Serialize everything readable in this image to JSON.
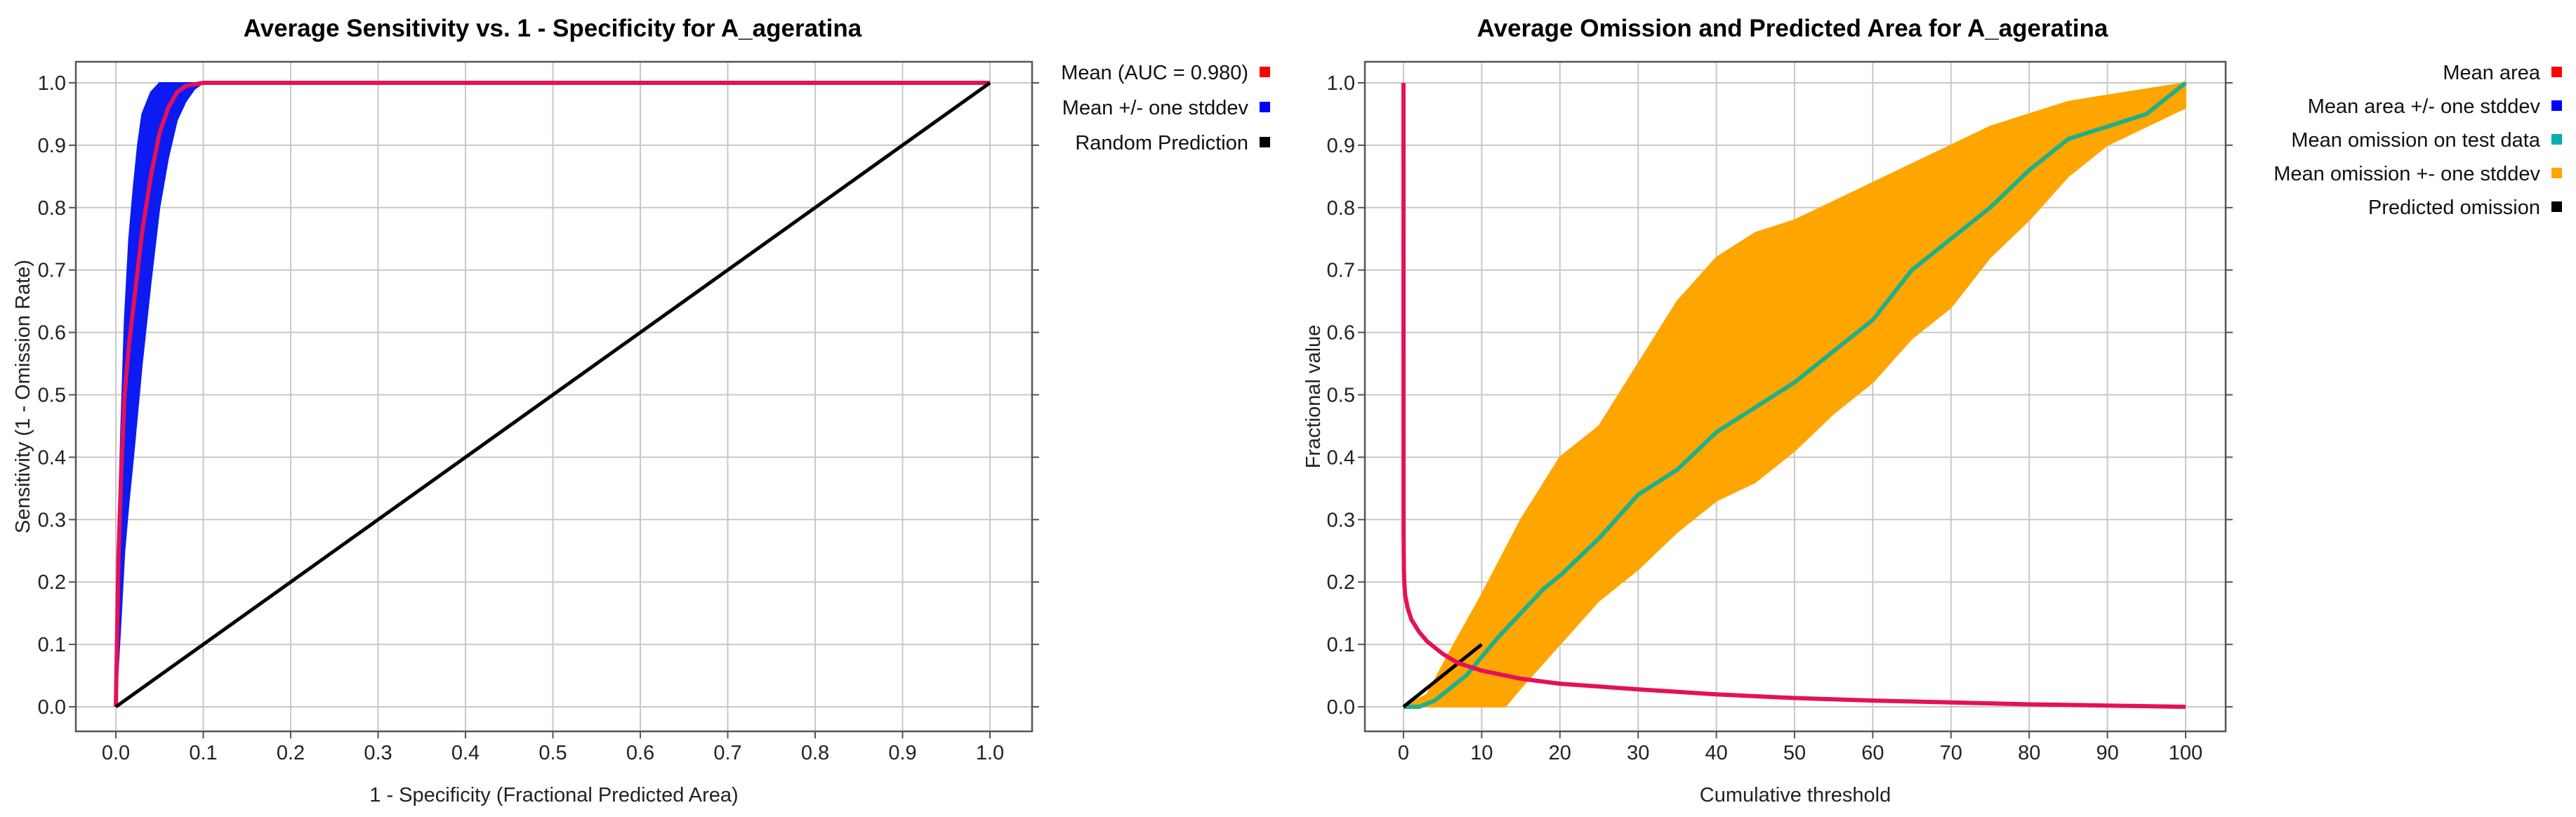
{
  "colors": {
    "mean": "#e4115a",
    "stddev_band": "#0b1bf2",
    "random": "#000000",
    "mean_area": "#e4115a",
    "omission_test": "#1fb08a",
    "omission_band": "#ffa500",
    "predicted_omission": "#000000",
    "legend_mean": "#ff0000",
    "legend_area_sd": "#0000ff",
    "legend_omission_test": "#00b0b0",
    "legend_omission_band": "#ffa500",
    "legend_black": "#000000"
  },
  "chart_data": [
    {
      "type": "line",
      "title": "Average Sensitivity vs. 1 - Specificity for A_ageratina",
      "xlabel": "1 - Specificity (Fractional Predicted Area)",
      "ylabel": "Sensitivity (1 - Omission Rate)",
      "xlim": [
        0,
        1
      ],
      "ylim": [
        0,
        1
      ],
      "xticks": [
        "0.0",
        "0.1",
        "0.2",
        "0.3",
        "0.4",
        "0.5",
        "0.6",
        "0.7",
        "0.8",
        "0.9",
        "1.0"
      ],
      "yticks": [
        "0.0",
        "0.1",
        "0.2",
        "0.3",
        "0.4",
        "0.5",
        "0.6",
        "0.7",
        "0.8",
        "0.9",
        "1.0"
      ],
      "grid": true,
      "legend": [
        {
          "label": "Mean (AUC = 0.980)",
          "color": "#ff0000"
        },
        {
          "label": "Mean +/- one stddev",
          "color": "#0000ff"
        },
        {
          "label": "Random Prediction",
          "color": "#000000"
        }
      ],
      "series": [
        {
          "name": "Mean +/- one stddev (upper)",
          "kind": "band_upper",
          "x": [
            0,
            0.003,
            0.006,
            0.01,
            0.015,
            0.02,
            0.025,
            0.03,
            0.04,
            0.05,
            0.06,
            1.0
          ],
          "y": [
            0,
            0.3,
            0.45,
            0.62,
            0.75,
            0.83,
            0.9,
            0.95,
            0.985,
            1.0,
            1.0,
            1.0
          ]
        },
        {
          "name": "Mean +/- one stddev (lower)",
          "kind": "band_lower",
          "x": [
            0,
            0.005,
            0.01,
            0.015,
            0.02,
            0.03,
            0.04,
            0.05,
            0.06,
            0.07,
            0.08,
            0.09,
            0.1,
            1.0
          ],
          "y": [
            0,
            0.12,
            0.25,
            0.33,
            0.4,
            0.55,
            0.68,
            0.8,
            0.88,
            0.94,
            0.97,
            0.99,
            1.0,
            1.0
          ]
        },
        {
          "name": "Mean (AUC = 0.980)",
          "kind": "line",
          "x": [
            0,
            0.003,
            0.006,
            0.01,
            0.015,
            0.02,
            0.025,
            0.03,
            0.04,
            0.05,
            0.06,
            0.07,
            0.08,
            0.1,
            1.0
          ],
          "y": [
            0,
            0.24,
            0.37,
            0.5,
            0.58,
            0.64,
            0.7,
            0.76,
            0.85,
            0.92,
            0.96,
            0.985,
            0.995,
            1.0,
            1.0
          ]
        },
        {
          "name": "Random Prediction",
          "kind": "line",
          "x": [
            0,
            1
          ],
          "y": [
            0,
            1
          ]
        }
      ]
    },
    {
      "type": "line",
      "title": "Average Omission and Predicted Area for A_ageratina",
      "xlabel": "Cumulative threshold",
      "ylabel": "Fractional value",
      "xlim": [
        0,
        100
      ],
      "ylim": [
        0,
        1
      ],
      "xticks": [
        "0",
        "10",
        "20",
        "30",
        "40",
        "50",
        "60",
        "70",
        "80",
        "90",
        "100"
      ],
      "yticks": [
        "0.0",
        "0.1",
        "0.2",
        "0.3",
        "0.4",
        "0.5",
        "0.6",
        "0.7",
        "0.8",
        "0.9",
        "1.0"
      ],
      "grid": true,
      "legend": [
        {
          "label": "Mean area",
          "color": "#ff0000"
        },
        {
          "label": "Mean area +/- one stddev",
          "color": "#0000ff"
        },
        {
          "label": "Mean omission on test data",
          "color": "#00b0b0"
        },
        {
          "label": "Mean omission +- one stddev",
          "color": "#ffa500"
        },
        {
          "label": "Predicted omission",
          "color": "#000000"
        }
      ],
      "series": [
        {
          "name": "Mean omission +- one stddev (upper)",
          "kind": "band_upper",
          "x": [
            0,
            3,
            6,
            10,
            15,
            20,
            25,
            30,
            35,
            40,
            45,
            50,
            55,
            60,
            65,
            70,
            75,
            80,
            85,
            90,
            95,
            100
          ],
          "y": [
            0,
            0.02,
            0.09,
            0.18,
            0.3,
            0.4,
            0.45,
            0.55,
            0.65,
            0.72,
            0.76,
            0.78,
            0.81,
            0.84,
            0.87,
            0.9,
            0.93,
            0.95,
            0.97,
            0.98,
            0.99,
            1.0
          ]
        },
        {
          "name": "Mean omission +- one stddev (lower)",
          "kind": "band_lower",
          "x": [
            0,
            5,
            10,
            13,
            15,
            20,
            25,
            30,
            35,
            40,
            45,
            50,
            55,
            60,
            65,
            70,
            75,
            80,
            85,
            90,
            95,
            100
          ],
          "y": [
            0,
            0,
            0,
            0,
            0.03,
            0.1,
            0.17,
            0.22,
            0.28,
            0.33,
            0.36,
            0.41,
            0.47,
            0.52,
            0.59,
            0.64,
            0.72,
            0.78,
            0.85,
            0.9,
            0.93,
            0.96
          ]
        },
        {
          "name": "Mean omission on test data",
          "kind": "line",
          "x": [
            0,
            2,
            4,
            6,
            8,
            10,
            12,
            15,
            18,
            20,
            25,
            30,
            35,
            40,
            45,
            50,
            55,
            60,
            65,
            70,
            75,
            80,
            85,
            90,
            95,
            100
          ],
          "y": [
            0,
            0,
            0.01,
            0.03,
            0.05,
            0.08,
            0.11,
            0.15,
            0.19,
            0.21,
            0.27,
            0.34,
            0.38,
            0.44,
            0.48,
            0.52,
            0.57,
            0.62,
            0.7,
            0.75,
            0.8,
            0.86,
            0.91,
            0.93,
            0.95,
            1.0
          ]
        },
        {
          "name": "Predicted omission",
          "kind": "line",
          "x": [
            0,
            10
          ],
          "y": [
            0,
            0.1
          ]
        },
        {
          "name": "Mean area",
          "kind": "line",
          "x": [
            0,
            0.01,
            0.05,
            0.1,
            0.2,
            0.5,
            1,
            2,
            3,
            5,
            7,
            10,
            15,
            20,
            30,
            40,
            50,
            60,
            70,
            80,
            90,
            100
          ],
          "y": [
            1.0,
            0.28,
            0.22,
            0.2,
            0.18,
            0.16,
            0.14,
            0.12,
            0.105,
            0.085,
            0.07,
            0.058,
            0.045,
            0.037,
            0.028,
            0.02,
            0.014,
            0.01,
            0.007,
            0.004,
            0.002,
            0.0
          ]
        }
      ]
    }
  ]
}
